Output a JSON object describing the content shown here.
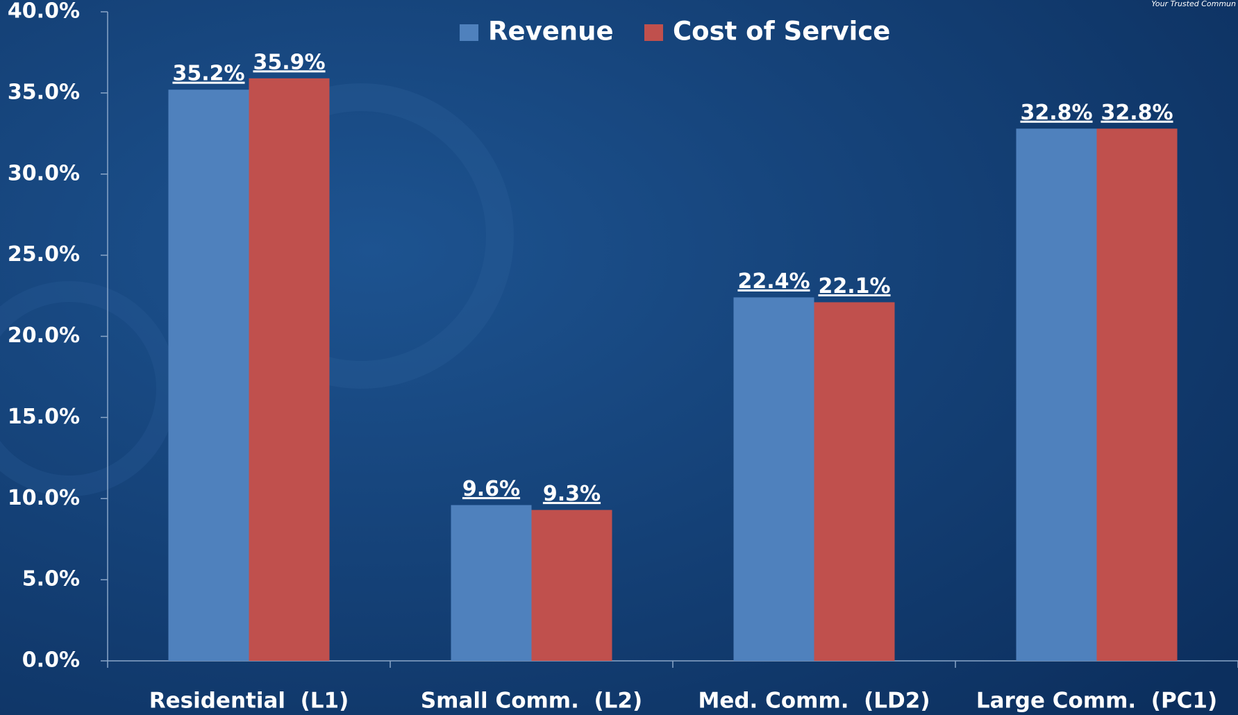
{
  "chart_data": {
    "type": "bar",
    "annotations": [
      "Your Trusted Commun"
    ],
    "categories": [
      "Residential  (L1)",
      "Small Comm.  (L2)",
      "Med. Comm.  (LD2)",
      "Large Comm.  (PC1)"
    ],
    "series": [
      {
        "name": "Revenue",
        "color": "#4f81bd",
        "values": [
          35.2,
          9.6,
          22.4,
          32.8
        ],
        "value_labels": [
          "35.2%",
          "9.6%",
          "22.4%",
          "32.8%"
        ]
      },
      {
        "name": "Cost of Service",
        "color": "#c0504d",
        "values": [
          35.9,
          9.3,
          22.1,
          32.8
        ],
        "value_labels": [
          "35.9%",
          "9.3%",
          "22.1%",
          "32.8%"
        ]
      }
    ],
    "ylim": [
      0,
      40
    ],
    "yticks": [
      {
        "value": 0,
        "label": "0.0%"
      },
      {
        "value": 5,
        "label": "5.0%"
      },
      {
        "value": 10,
        "label": "10.0%"
      },
      {
        "value": 15,
        "label": "15.0%"
      },
      {
        "value": 20,
        "label": "20.0%"
      },
      {
        "value": 25,
        "label": "25.0%"
      },
      {
        "value": 30,
        "label": "30.0%"
      },
      {
        "value": 35,
        "label": "35.0%"
      },
      {
        "value": 40,
        "label": "40.0%"
      }
    ],
    "legend": "top"
  }
}
